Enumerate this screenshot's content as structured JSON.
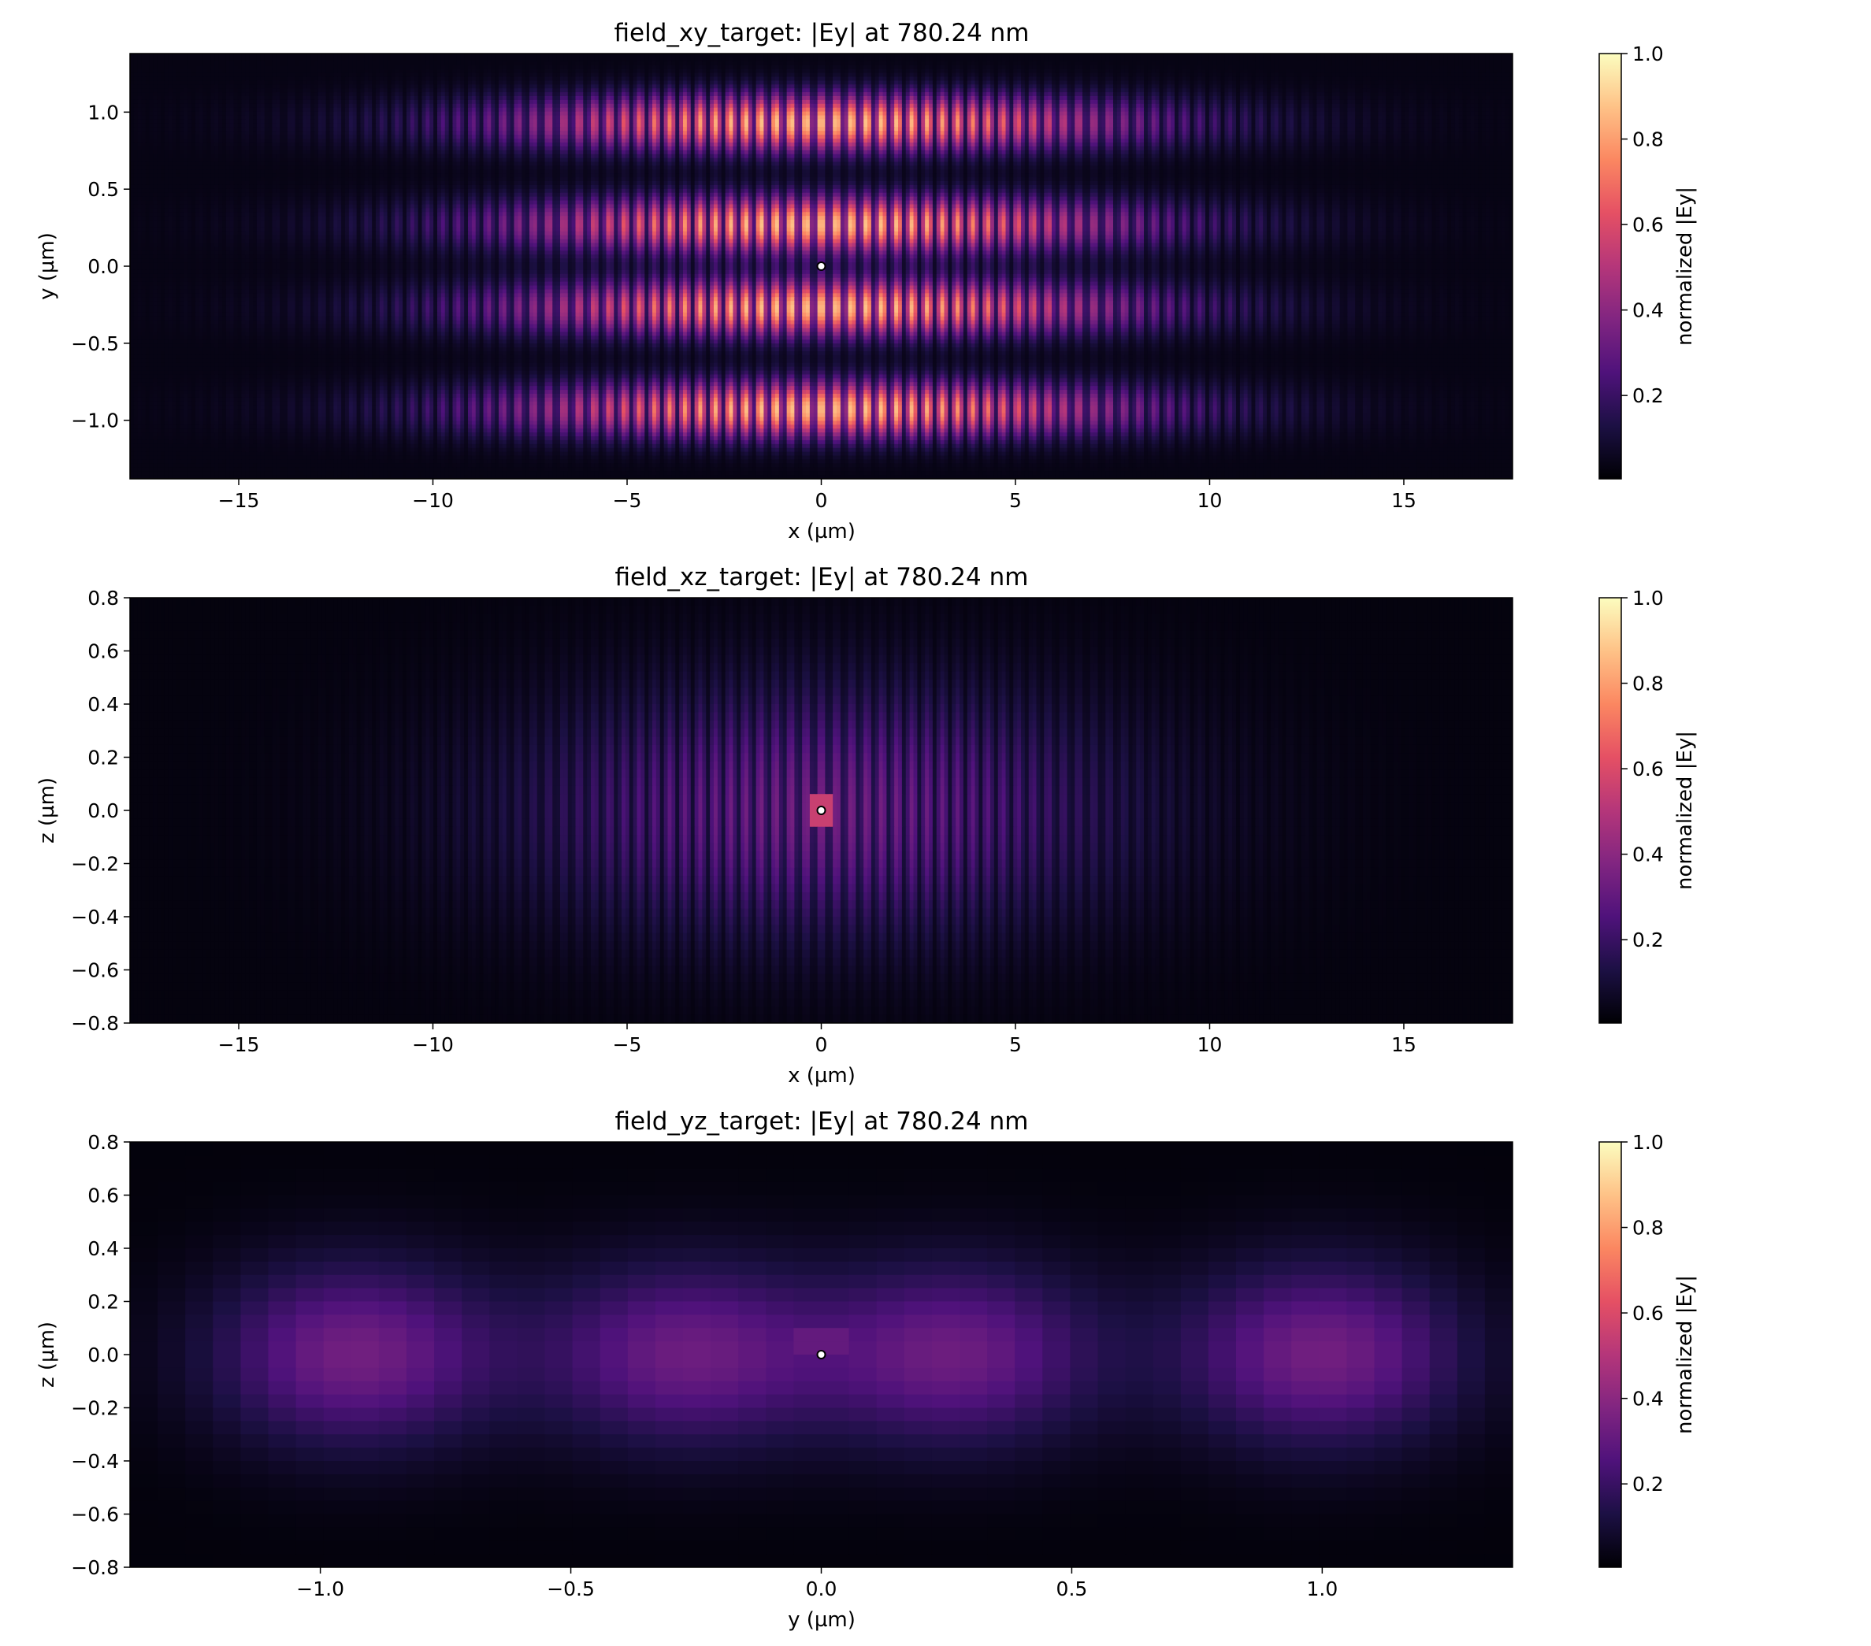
{
  "colormap": [
    "#000004",
    "#1c1044",
    "#4f127b",
    "#812581",
    "#b5367a",
    "#e55064",
    "#fb8761",
    "#fec287",
    "#fcfdbf"
  ],
  "marker_colors": {
    "fill": "#ffffff",
    "stroke": "#000000"
  },
  "chart_data": [
    {
      "type": "heatmap",
      "title": "field_xy_target: |Ey| at 780.24 nm",
      "xlabel": "x (µm)",
      "ylabel": "y (µm)",
      "xlim": [
        -17.8,
        17.8
      ],
      "ylim": [
        -1.38,
        1.38
      ],
      "xticks": [
        -15,
        -10,
        -5,
        0,
        5,
        10,
        15
      ],
      "xtick_labels": [
        "−15",
        "−10",
        "−5",
        "0",
        "5",
        "10",
        "15"
      ],
      "yticks": [
        -1.0,
        -0.5,
        0.0,
        0.5,
        1.0
      ],
      "ytick_labels": [
        "−1.0",
        "−0.5",
        "0.0",
        "0.5",
        "1.0"
      ],
      "colorbar_label": "normalized |Ey|",
      "colorbar_ticks": [
        0.2,
        0.4,
        0.6,
        0.8,
        1.0
      ],
      "colorbar_tick_labels": [
        "0.2",
        "0.4",
        "0.6",
        "0.8",
        "1.0"
      ],
      "marker": [
        0.0,
        0.0
      ]
    },
    {
      "type": "heatmap",
      "title": "field_xz_target: |Ey| at 780.24 nm",
      "xlabel": "x (µm)",
      "ylabel": "z (µm)",
      "xlim": [
        -17.8,
        17.8
      ],
      "ylim": [
        -0.8,
        0.8
      ],
      "xticks": [
        -15,
        -10,
        -5,
        0,
        5,
        10,
        15
      ],
      "xtick_labels": [
        "−15",
        "−10",
        "−5",
        "0",
        "5",
        "10",
        "15"
      ],
      "yticks": [
        -0.8,
        -0.6,
        -0.4,
        -0.2,
        0.0,
        0.2,
        0.4,
        0.6,
        0.8
      ],
      "ytick_labels": [
        "−0.8",
        "−0.6",
        "−0.4",
        "−0.2",
        "0.0",
        "0.2",
        "0.4",
        "0.6",
        "0.8"
      ],
      "colorbar_label": "normalized |Ey|",
      "colorbar_ticks": [
        0.2,
        0.4,
        0.6,
        0.8,
        1.0
      ],
      "colorbar_tick_labels": [
        "0.2",
        "0.4",
        "0.6",
        "0.8",
        "1.0"
      ],
      "marker": [
        0.0,
        0.0
      ]
    },
    {
      "type": "heatmap",
      "title": "field_yz_target: |Ey| at 780.24 nm",
      "xlabel": "y (µm)",
      "ylabel": "z (µm)",
      "xlim": [
        -1.38,
        1.38
      ],
      "ylim": [
        -0.8,
        0.8
      ],
      "xticks": [
        -1.0,
        -0.5,
        0.0,
        0.5,
        1.0
      ],
      "xtick_labels": [
        "−1.0",
        "−0.5",
        "0.0",
        "0.5",
        "1.0"
      ],
      "yticks": [
        -0.8,
        -0.6,
        -0.4,
        -0.2,
        0.0,
        0.2,
        0.4,
        0.6,
        0.8
      ],
      "ytick_labels": [
        "−0.8",
        "−0.6",
        "−0.4",
        "−0.2",
        "0.0",
        "0.2",
        "0.4",
        "0.6",
        "0.8"
      ],
      "colorbar_label": "normalized |Ey|",
      "colorbar_ticks": [
        0.2,
        0.4,
        0.6,
        0.8,
        1.0
      ],
      "colorbar_tick_labels": [
        "0.2",
        "0.4",
        "0.6",
        "0.8",
        "1.0"
      ],
      "marker": [
        0.0,
        0.0
      ]
    }
  ]
}
